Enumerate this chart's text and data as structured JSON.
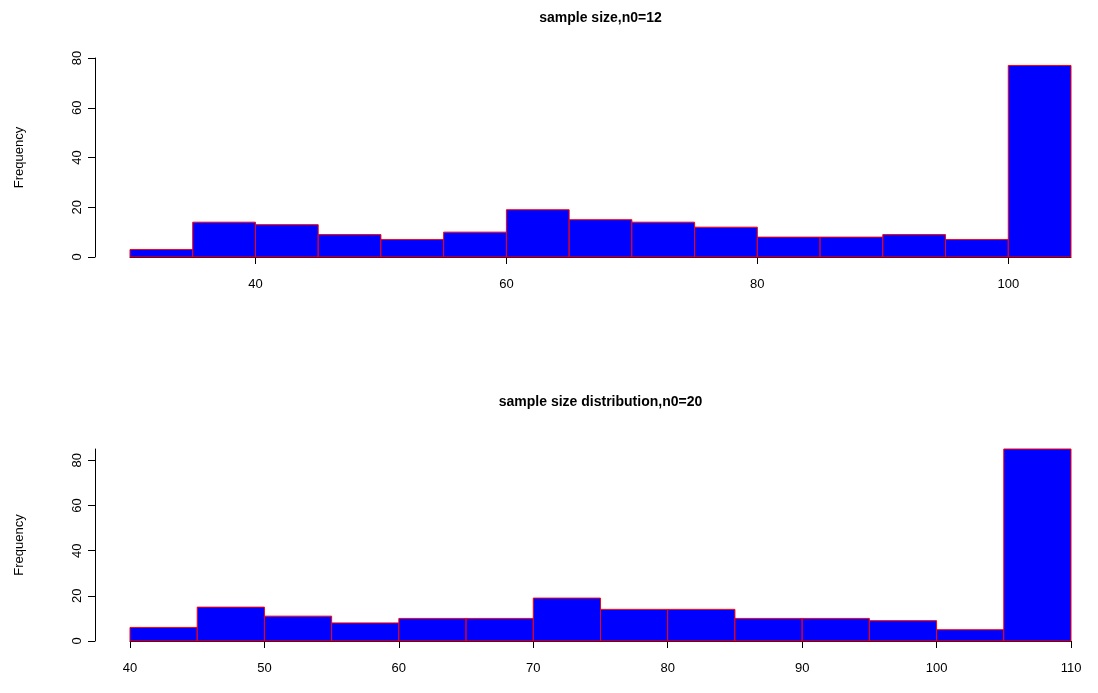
{
  "chart_data": [
    {
      "type": "histogram",
      "title": "sample size,n0=12",
      "ylabel": "Frequency",
      "bins": [
        30,
        35,
        40,
        45,
        50,
        55,
        60,
        65,
        70,
        75,
        80,
        85,
        90,
        95,
        100,
        105
      ],
      "values": [
        3,
        14,
        13,
        9,
        7,
        10,
        19,
        15,
        14,
        12,
        8,
        8,
        9,
        7,
        77
      ],
      "color": "#0000ff",
      "xlim": [
        30,
        105
      ],
      "xticks": [
        40,
        60,
        80,
        100
      ],
      "ylim": [
        0,
        80
      ],
      "yticks": [
        0,
        20,
        40,
        60,
        80
      ],
      "grid": false
    },
    {
      "type": "histogram",
      "title": "sample size distribution,n0=20",
      "ylabel": "Frequency",
      "bins": [
        40,
        45,
        50,
        55,
        60,
        65,
        70,
        75,
        80,
        85,
        90,
        95,
        100,
        105,
        110
      ],
      "values": [
        6,
        15,
        11,
        8,
        10,
        10,
        19,
        14,
        14,
        10,
        10,
        9,
        5,
        85
      ],
      "color": "#0000ff",
      "xlim": [
        40,
        110
      ],
      "xticks": [
        40,
        50,
        60,
        70,
        80,
        90,
        100,
        110
      ],
      "ylim": [
        0,
        85
      ],
      "yticks": [
        0,
        20,
        40,
        60,
        80
      ],
      "grid": false
    }
  ]
}
